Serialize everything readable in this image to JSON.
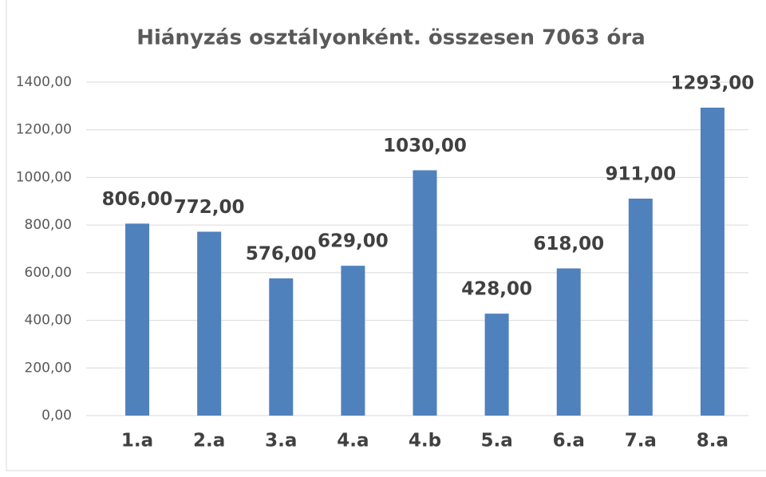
{
  "chart_data": {
    "type": "bar",
    "title": "Hiányzás osztályonként. összesen 7063 óra",
    "categories": [
      "1.a",
      "2.a",
      "3.a",
      "4.a",
      "4.b",
      "5.a",
      "6.a",
      "7.a",
      "8.a"
    ],
    "values": [
      806,
      772,
      576,
      629,
      1030,
      428,
      618,
      911,
      1293
    ],
    "value_labels": [
      "806,00",
      "772,00",
      "576,00",
      "629,00",
      "1030,00",
      "428,00",
      "618,00",
      "911,00",
      "1293,00"
    ],
    "color": "#4f81bd",
    "ylim": [
      0,
      1400
    ],
    "yticks": [
      {
        "value": 0,
        "label": "0,00"
      },
      {
        "value": 200,
        "label": "200,00"
      },
      {
        "value": 400,
        "label": "400,00"
      },
      {
        "value": 600,
        "label": "600,00"
      },
      {
        "value": 800,
        "label": "800,00"
      },
      {
        "value": 1000,
        "label": "1000,00"
      },
      {
        "value": 1200,
        "label": "1200,00"
      },
      {
        "value": 1400,
        "label": "1400,00"
      }
    ],
    "grid": true
  }
}
